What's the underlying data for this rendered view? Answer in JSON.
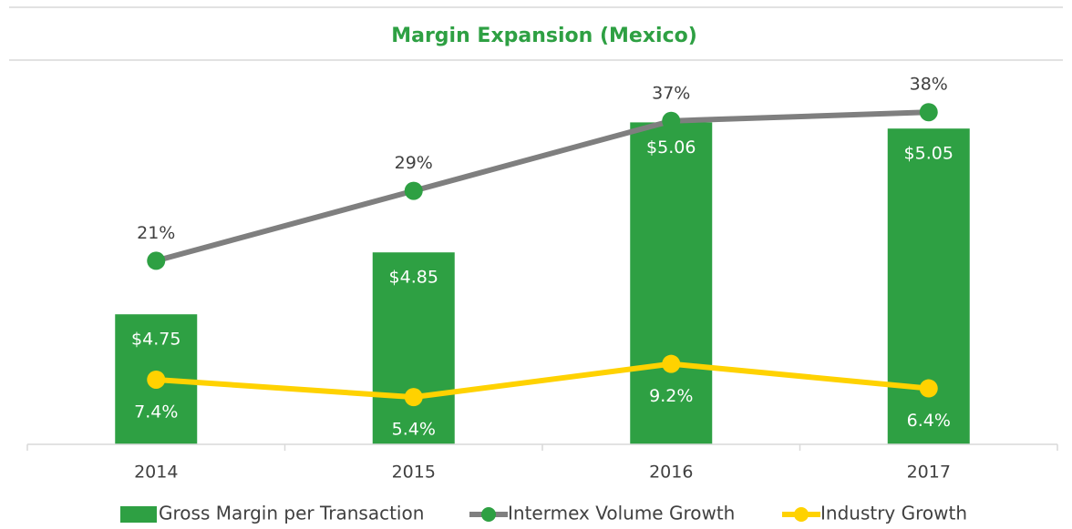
{
  "chart_data": {
    "type": "combo",
    "title": "Margin Expansion (Mexico)",
    "categories": [
      "2014",
      "2015",
      "2016",
      "2017"
    ],
    "series": [
      {
        "name": "Gross Margin per Transaction",
        "type": "bar",
        "color": "#2ea043",
        "axis": "y",
        "values": [
          4.75,
          4.85,
          5.06,
          5.05
        ],
        "value_labels": [
          "$4.75",
          "$4.85",
          "$5.06",
          "$5.05"
        ]
      },
      {
        "name": "Intermex Volume Growth",
        "type": "line",
        "color": "#7f7f7f",
        "marker_color": "#2ea043",
        "axis": "y2",
        "values": [
          21,
          29,
          37,
          38
        ],
        "value_labels": [
          "21%",
          "29%",
          "37%",
          "38%"
        ]
      },
      {
        "name": "Industry Growth",
        "type": "line",
        "color": "#ffd200",
        "marker_color": "#ffd200",
        "axis": "y2",
        "values": [
          7.4,
          5.4,
          9.2,
          6.4
        ],
        "value_labels": [
          "7.4%",
          "5.4%",
          "9.2%",
          "6.4%"
        ]
      }
    ],
    "ylim": [
      4.54,
      5.14
    ],
    "y2lim": [
      0,
      42.5
    ]
  }
}
